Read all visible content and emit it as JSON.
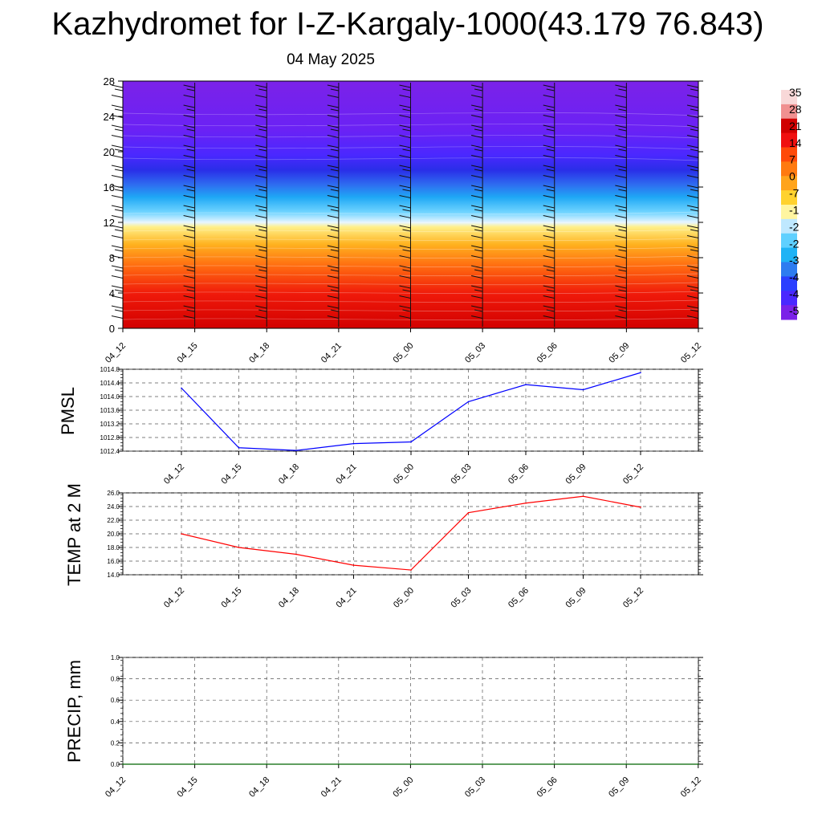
{
  "header": {
    "title": "Kazhydromet for I-Z-Kargaly-1000(43.179 76.843)",
    "date": "04 May 2025"
  },
  "chart_data": [
    {
      "type": "heatmap",
      "name": "cross-section",
      "x_categories": [
        "04_12",
        "04_15",
        "04_18",
        "04_21",
        "05_00",
        "05_03",
        "05_06",
        "05_09",
        "05_12"
      ],
      "y_ticks": [
        "0",
        "4",
        "8",
        "12",
        "16",
        "20",
        "24",
        "28"
      ],
      "ylim": [
        0,
        28
      ],
      "colorbar_labels": [
        "35",
        "28",
        "21",
        "14",
        "7",
        "0",
        "-7",
        "-1",
        "-2",
        "-2",
        "-3",
        "-4",
        "-4",
        "-5"
      ],
      "colorbar_colors": [
        "#7b22e8",
        "#4a28ff",
        "#2b3fff",
        "#2e7cf0",
        "#1fb3f5",
        "#5fd0ff",
        "#bfe8ff",
        "#fff5a0",
        "#ffd22e",
        "#ffa41c",
        "#ff7a10",
        "#ff4a0a",
        "#f01010",
        "#d00000",
        "#f09090",
        "#f8d8d8"
      ],
      "wind_barbs": true
    },
    {
      "type": "line",
      "ylabel": "PMSL",
      "categories": [
        "04_12",
        "04_15",
        "04_18",
        "04_21",
        "05_00",
        "05_03",
        "05_06",
        "05_09",
        "05_12"
      ],
      "values": [
        1014.25,
        1012.5,
        1012.42,
        1012.62,
        1012.67,
        1013.85,
        1014.35,
        1014.2,
        1014.7
      ],
      "yticks": [
        "1012.4",
        "1012.8",
        "1013.2",
        "1013.6",
        "1014.0",
        "1014.4",
        "1014.8"
      ],
      "ylim": [
        1012.4,
        1014.8
      ],
      "color": "#0000ff",
      "grid": true
    },
    {
      "type": "line",
      "ylabel": "TEMP at 2 M",
      "categories": [
        "04_12",
        "04_15",
        "04_18",
        "04_21",
        "05_00",
        "05_03",
        "05_06",
        "05_09",
        "05_12"
      ],
      "values": [
        20.0,
        18.0,
        17.0,
        15.4,
        14.7,
        23.1,
        24.5,
        25.5,
        23.9
      ],
      "yticks": [
        "14.0",
        "16.0",
        "18.0",
        "20.0",
        "22.0",
        "24.0",
        "26.0"
      ],
      "ylim": [
        14,
        26
      ],
      "color": "#ff0000",
      "grid": true
    },
    {
      "type": "line",
      "ylabel": "PRECIP, mm",
      "categories": [
        "04_12",
        "04_15",
        "04_18",
        "04_21",
        "05_00",
        "05_03",
        "05_06",
        "05_09",
        "05_12"
      ],
      "values": [
        0,
        0,
        0,
        0,
        0,
        0,
        0,
        0,
        0
      ],
      "yticks": [
        "0.0",
        "0.2",
        "0.4",
        "0.6",
        "0.8",
        "1.0"
      ],
      "ylim": [
        0,
        1
      ],
      "color": "#006400",
      "grid": true
    }
  ]
}
